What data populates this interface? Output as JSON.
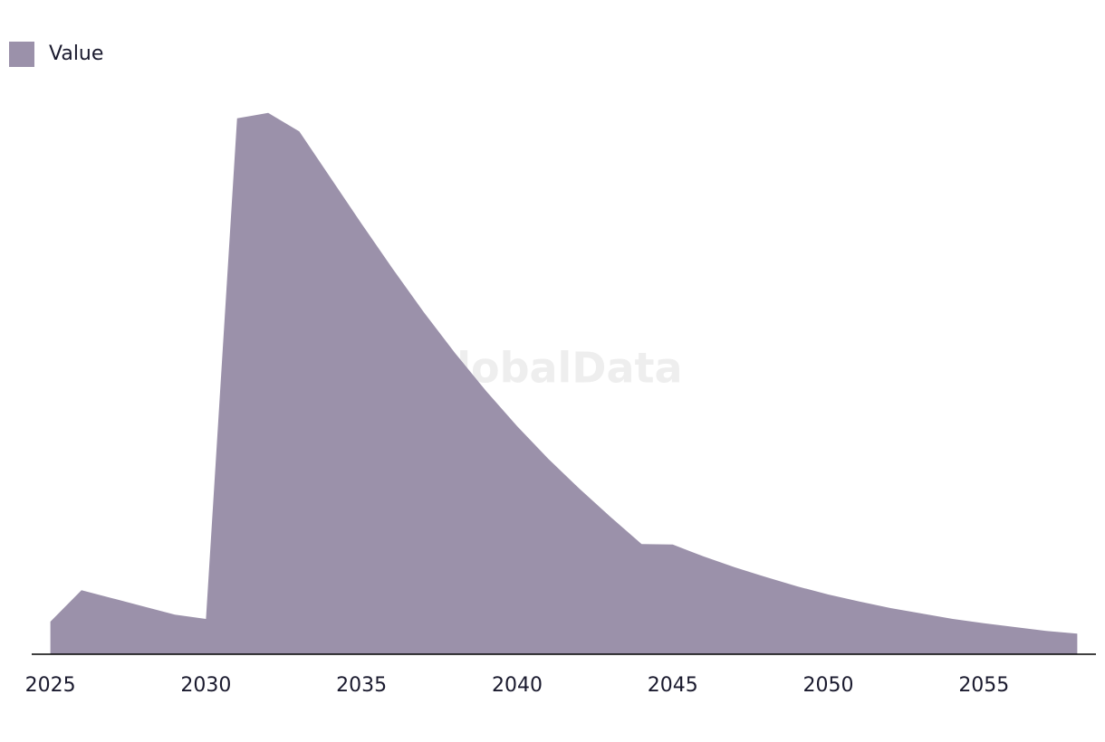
{
  "chart_data": {
    "type": "area",
    "watermark": "GlobalData",
    "x": [
      2025,
      2026,
      2027,
      2028,
      2029,
      2030,
      2031,
      2032,
      2033,
      2034,
      2035,
      2036,
      2037,
      2038,
      2039,
      2040,
      2041,
      2042,
      2043,
      2044,
      2045,
      2046,
      2047,
      2048,
      2049,
      2050,
      2051,
      2052,
      2053,
      2054,
      2055,
      2056,
      2057,
      2058
    ],
    "series": [
      {
        "name": "Value",
        "color": "#9b91aa",
        "values": [
          6,
          11.8,
          10.3,
          8.8,
          7.3,
          6.5,
          98.7,
          99.7,
          96.3,
          87.8,
          79.3,
          71,
          63,
          55.5,
          48.5,
          42,
          36,
          30.5,
          25.3,
          20.3,
          20.2,
          18,
          16,
          14.2,
          12.5,
          11,
          9.7,
          8.5,
          7.5,
          6.5,
          5.7,
          5,
          4.3,
          3.8
        ]
      }
    ],
    "xlim": [
      2024.4,
      2058.6
    ],
    "xticks": [
      2025,
      2030,
      2035,
      2040,
      2045,
      2050,
      2055
    ],
    "ylim": [
      0,
      100
    ]
  }
}
